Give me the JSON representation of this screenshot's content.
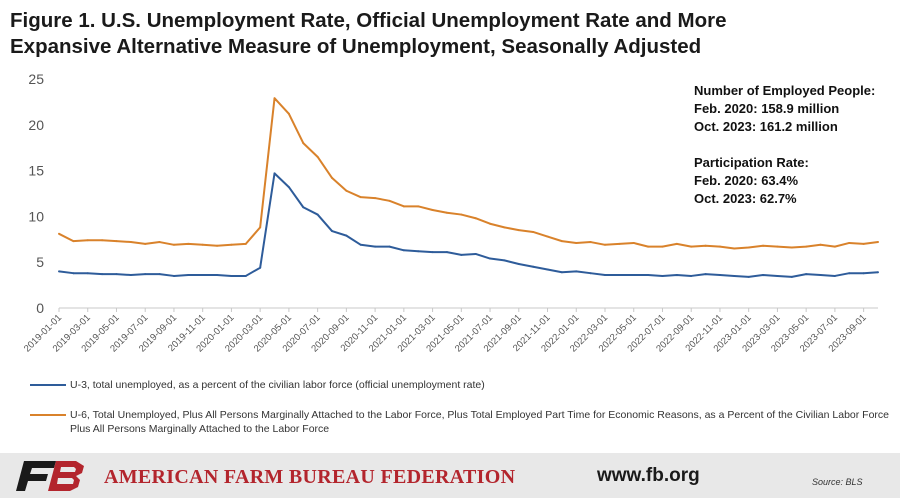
{
  "title": {
    "line1": "Figure 1. U.S. Unemployment Rate, Official Unemployment Rate and More",
    "line2": "Expansive Alternative Measure of Unemployment, Seasonally Adjusted"
  },
  "annotation": {
    "employed_heading": "Number of Employed People:",
    "employed_feb": "Feb. 2020: 158.9 million",
    "employed_oct": "Oct. 2023: 161.2 million",
    "participation_heading": "Participation Rate:",
    "participation_feb": "Feb. 2020: 63.4%",
    "participation_oct": "Oct. 2023: 62.7%"
  },
  "legend": {
    "u3": "U-3, total unemployed, as a percent of the civilian labor force (official unemployment rate)",
    "u6": "U-6, Total Unemployed, Plus All Persons Marginally Attached to the Labor Force, Plus Total Employed Part Time for Economic Reasons, as a Percent of the Civilian Labor Force Plus All Persons Marginally Attached to the Labor Force"
  },
  "footer": {
    "organization": "AMERICAN FARM BUREAU FEDERATION",
    "website": "www.fb.org",
    "source": "Source: BLS"
  },
  "colors": {
    "u3": "#2e5c9a",
    "u6": "#d9822b",
    "axis": "#c8c8c8",
    "logo_red": "#b3252d",
    "logo_black": "#1a1a1a"
  },
  "chart_data": {
    "type": "line",
    "x": [
      "2019-01-01",
      "2019-02-01",
      "2019-03-01",
      "2019-04-01",
      "2019-05-01",
      "2019-06-01",
      "2019-07-01",
      "2019-08-01",
      "2019-09-01",
      "2019-10-01",
      "2019-11-01",
      "2019-12-01",
      "2020-01-01",
      "2020-02-01",
      "2020-03-01",
      "2020-04-01",
      "2020-05-01",
      "2020-06-01",
      "2020-07-01",
      "2020-08-01",
      "2020-09-01",
      "2020-10-01",
      "2020-11-01",
      "2020-12-01",
      "2021-01-01",
      "2021-02-01",
      "2021-03-01",
      "2021-04-01",
      "2021-05-01",
      "2021-06-01",
      "2021-07-01",
      "2021-08-01",
      "2021-09-01",
      "2021-10-01",
      "2021-11-01",
      "2021-12-01",
      "2022-01-01",
      "2022-02-01",
      "2022-03-01",
      "2022-04-01",
      "2022-05-01",
      "2022-06-01",
      "2022-07-01",
      "2022-08-01",
      "2022-09-01",
      "2022-10-01",
      "2022-11-01",
      "2022-12-01",
      "2023-01-01",
      "2023-02-01",
      "2023-03-01",
      "2023-04-01",
      "2023-05-01",
      "2023-06-01",
      "2023-07-01",
      "2023-08-01",
      "2023-09-01",
      "2023-10-01"
    ],
    "x_tick_labels": [
      "2019-01-01",
      "2019-03-01",
      "2019-05-01",
      "2019-07-01",
      "2019-09-01",
      "2019-11-01",
      "2020-01-01",
      "2020-03-01",
      "2020-05-01",
      "2020-07-01",
      "2020-09-01",
      "2020-11-01",
      "2021-01-01",
      "2021-03-01",
      "2021-05-01",
      "2021-07-01",
      "2021-09-01",
      "2021-11-01",
      "2022-01-01",
      "2022-03-01",
      "2022-05-01",
      "2022-07-01",
      "2022-09-01",
      "2022-11-01",
      "2023-01-01",
      "2023-03-01",
      "2023-05-01",
      "2023-07-01",
      "2023-09-01"
    ],
    "series": [
      {
        "key": "u3",
        "values": [
          4.0,
          3.8,
          3.8,
          3.7,
          3.7,
          3.6,
          3.7,
          3.7,
          3.5,
          3.6,
          3.6,
          3.6,
          3.5,
          3.5,
          4.4,
          14.7,
          13.2,
          11.0,
          10.2,
          8.4,
          7.9,
          6.9,
          6.7,
          6.7,
          6.3,
          6.2,
          6.1,
          6.1,
          5.8,
          5.9,
          5.4,
          5.2,
          4.8,
          4.5,
          4.2,
          3.9,
          4.0,
          3.8,
          3.6,
          3.6,
          3.6,
          3.6,
          3.5,
          3.6,
          3.5,
          3.7,
          3.6,
          3.5,
          3.4,
          3.6,
          3.5,
          3.4,
          3.7,
          3.6,
          3.5,
          3.8,
          3.8,
          3.9
        ]
      },
      {
        "key": "u6",
        "values": [
          8.1,
          7.3,
          7.4,
          7.4,
          7.3,
          7.2,
          7.0,
          7.2,
          6.9,
          7.0,
          6.9,
          6.8,
          6.9,
          7.0,
          8.8,
          22.9,
          21.2,
          18.0,
          16.5,
          14.2,
          12.8,
          12.1,
          12.0,
          11.7,
          11.1,
          11.1,
          10.7,
          10.4,
          10.2,
          9.8,
          9.2,
          8.8,
          8.5,
          8.3,
          7.8,
          7.3,
          7.1,
          7.2,
          6.9,
          7.0,
          7.1,
          6.7,
          6.7,
          7.0,
          6.7,
          6.8,
          6.7,
          6.5,
          6.6,
          6.8,
          6.7,
          6.6,
          6.7,
          6.9,
          6.7,
          7.1,
          7.0,
          7.2
        ]
      }
    ],
    "y_ticks": [
      0,
      5,
      10,
      15,
      20,
      25
    ],
    "ylim": [
      0,
      25
    ],
    "grid": false,
    "legend_position": "bottom"
  }
}
